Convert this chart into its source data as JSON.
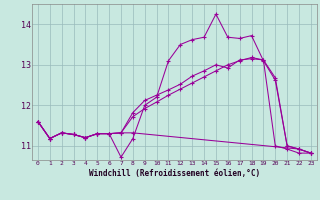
{
  "xlabel": "Windchill (Refroidissement éolien,°C)",
  "background_color": "#c8e8e0",
  "grid_color": "#99bbbb",
  "line_color": "#990099",
  "xlim": [
    -0.5,
    23.5
  ],
  "ylim": [
    10.65,
    14.5
  ],
  "yticks": [
    11,
    12,
    13,
    14
  ],
  "xticks": [
    0,
    1,
    2,
    3,
    4,
    5,
    6,
    7,
    8,
    9,
    10,
    11,
    12,
    13,
    14,
    15,
    16,
    17,
    18,
    19,
    20,
    21,
    22,
    23
  ],
  "series": [
    {
      "x": [
        0,
        1,
        2,
        3,
        4,
        5,
        6,
        7,
        8,
        9,
        10,
        11,
        12,
        13,
        14,
        15,
        16,
        17,
        18,
        19,
        20,
        21,
        22,
        23
      ],
      "y": [
        11.6,
        11.18,
        11.32,
        11.28,
        11.2,
        11.3,
        11.3,
        10.72,
        11.18,
        12.0,
        12.2,
        13.1,
        13.5,
        13.62,
        13.68,
        14.25,
        13.68,
        13.65,
        13.72,
        13.1,
        12.62,
        11.0,
        10.92,
        10.82
      ]
    },
    {
      "x": [
        0,
        1,
        2,
        3,
        4,
        5,
        6,
        7,
        8,
        22,
        23
      ],
      "y": [
        11.6,
        11.18,
        11.32,
        11.28,
        11.2,
        11.3,
        11.3,
        11.32,
        11.32,
        10.92,
        10.82
      ]
    },
    {
      "x": [
        0,
        1,
        2,
        3,
        4,
        5,
        6,
        7,
        8,
        9,
        10,
        11,
        12,
        13,
        14,
        15,
        16,
        17,
        18,
        19,
        20,
        21,
        22,
        23
      ],
      "y": [
        11.6,
        11.18,
        11.32,
        11.28,
        11.2,
        11.3,
        11.3,
        11.32,
        11.82,
        12.12,
        12.25,
        12.38,
        12.52,
        12.72,
        12.85,
        13.0,
        12.92,
        13.12,
        13.15,
        13.12,
        12.68,
        11.0,
        10.92,
        10.82
      ]
    },
    {
      "x": [
        0,
        1,
        2,
        3,
        4,
        5,
        6,
        7,
        8,
        9,
        10,
        11,
        12,
        13,
        14,
        15,
        16,
        17,
        18,
        19,
        20,
        21,
        22,
        23
      ],
      "y": [
        11.6,
        11.18,
        11.32,
        11.28,
        11.2,
        11.3,
        11.3,
        11.32,
        11.72,
        11.92,
        12.08,
        12.25,
        12.4,
        12.55,
        12.7,
        12.85,
        13.0,
        13.1,
        13.18,
        13.12,
        11.0,
        10.92,
        10.82,
        10.82
      ]
    }
  ]
}
